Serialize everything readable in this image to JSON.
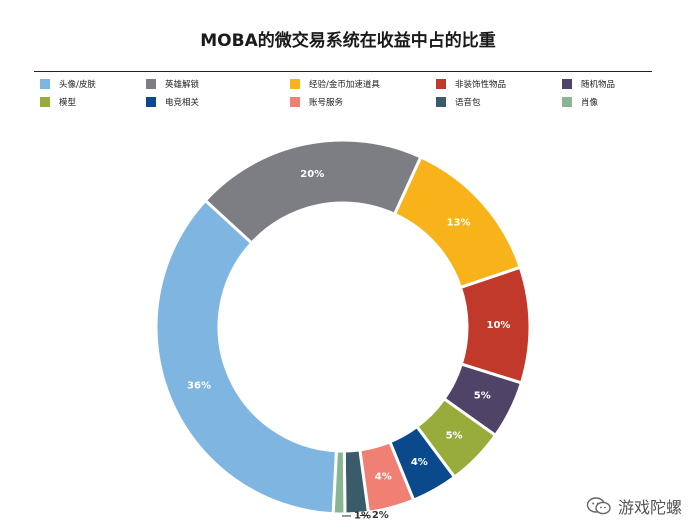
{
  "chart_data": {
    "type": "pie",
    "title": "MOBA的微交易系统在收益中占的比重",
    "legend_position": "top",
    "slices": [
      {
        "name": "头像/皮肤",
        "value": 36,
        "label": "36%",
        "color": "#7fb6e1"
      },
      {
        "name": "英雄解锁",
        "value": 20,
        "label": "20%",
        "color": "#7d7e83"
      },
      {
        "name": "经验/金币加速道具",
        "value": 13,
        "label": "13%",
        "color": "#f8b31b"
      },
      {
        "name": "非装饰性物品",
        "value": 10,
        "label": "10%",
        "color": "#c0392b"
      },
      {
        "name": "随机物品",
        "value": 5,
        "label": "5%",
        "color": "#4f4368"
      },
      {
        "name": "模型",
        "value": 5,
        "label": "5%",
        "color": "#97ac3b"
      },
      {
        "name": "电竞相关",
        "value": 4,
        "label": "4%",
        "color": "#0a4a8c"
      },
      {
        "name": "账号服务",
        "value": 4,
        "label": "4%",
        "color": "#f08073"
      },
      {
        "name": "语音包",
        "value": 2,
        "label": "2%",
        "color": "#3a5b69"
      },
      {
        "name": "肖像",
        "value": 1,
        "label": "1%",
        "color": "#8ab592"
      }
    ]
  },
  "watermark": {
    "text": "游戏陀螺",
    "icon": "wechat-icon"
  }
}
